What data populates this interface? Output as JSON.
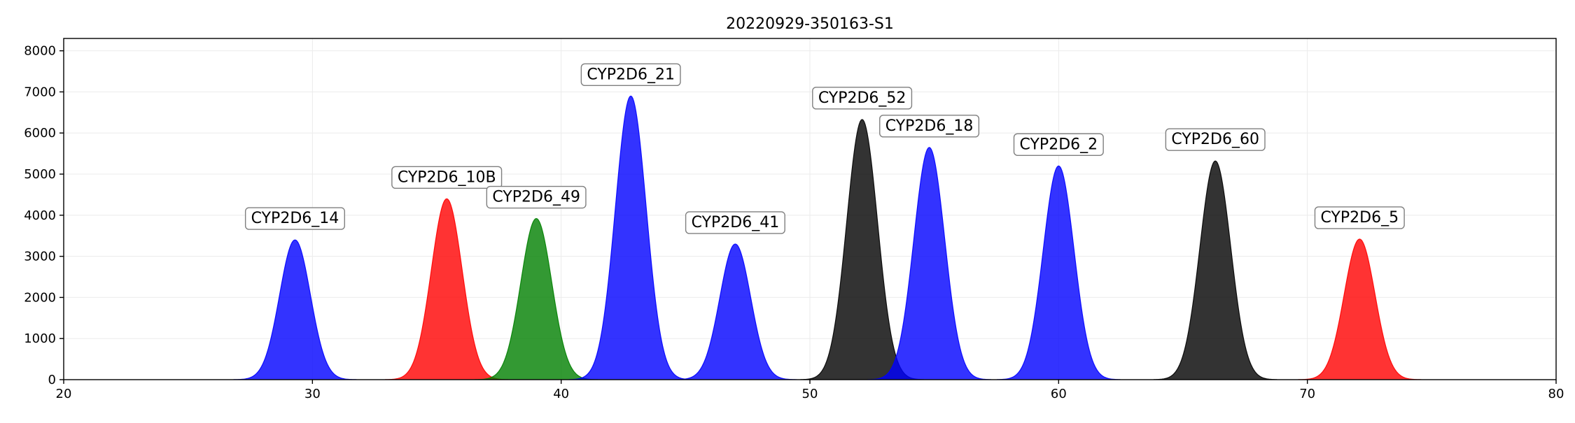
{
  "chart_data": {
    "type": "area",
    "title": "20220929-350163-S1",
    "xlabel": "",
    "ylabel": "",
    "xlim": [
      20,
      80
    ],
    "ylim": [
      0,
      8300
    ],
    "xticks": [
      20,
      30,
      40,
      50,
      60,
      70,
      80
    ],
    "yticks": [
      0,
      1000,
      2000,
      3000,
      4000,
      5000,
      6000,
      7000,
      8000
    ],
    "grid": true,
    "colors": {
      "blue": "#0000ff",
      "red": "#ff0000",
      "green": "#008000",
      "black": "#000000"
    },
    "series": [
      {
        "name": "CYP2D6_14",
        "center": 29.3,
        "height": 3400,
        "color": "blue"
      },
      {
        "name": "CYP2D6_10B",
        "center": 35.4,
        "height": 4400,
        "color": "red"
      },
      {
        "name": "CYP2D6_49",
        "center": 39.0,
        "height": 3920,
        "color": "green"
      },
      {
        "name": "CYP2D6_21",
        "center": 42.8,
        "height": 6900,
        "color": "blue"
      },
      {
        "name": "CYP2D6_41",
        "center": 47.0,
        "height": 3300,
        "color": "blue"
      },
      {
        "name": "CYP2D6_52",
        "center": 52.1,
        "height": 6330,
        "color": "black"
      },
      {
        "name": "CYP2D6_18",
        "center": 54.8,
        "height": 5650,
        "color": "blue"
      },
      {
        "name": "CYP2D6_2",
        "center": 60.0,
        "height": 5200,
        "color": "blue"
      },
      {
        "name": "CYP2D6_60",
        "center": 66.3,
        "height": 5320,
        "color": "black"
      },
      {
        "name": "CYP2D6_5",
        "center": 72.1,
        "height": 3420,
        "color": "red"
      }
    ]
  }
}
